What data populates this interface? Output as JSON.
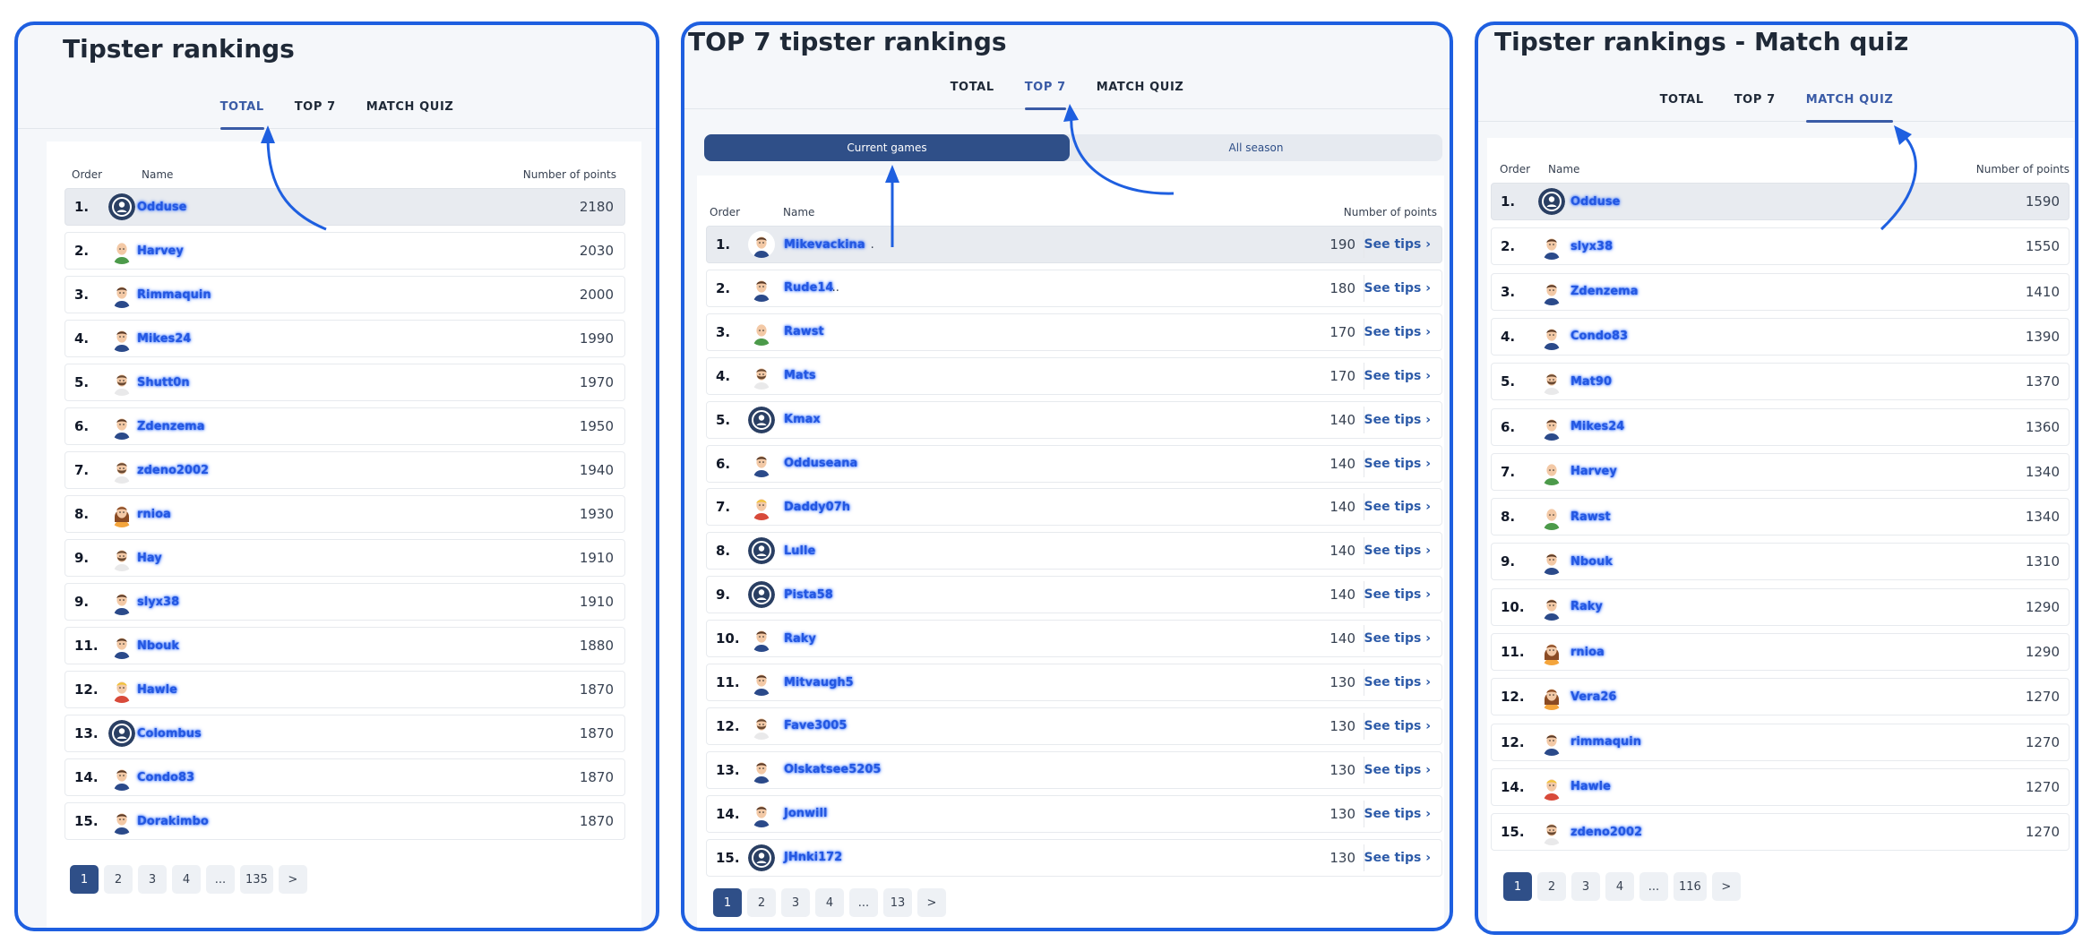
{
  "colors": {
    "accent": "#3a5ba6",
    "panel_border": "#1e5fe0",
    "arrow": "#1e5fe0",
    "pager_active": "#2f4f88"
  },
  "tabs": [
    "TOTAL",
    "TOP 7",
    "MATCH QUIZ"
  ],
  "columns": {
    "order": "Order",
    "name": "Name",
    "points": "Number of points"
  },
  "see_tips": "See tips",
  "panels": [
    {
      "title": "Tipster rankings",
      "active_tab": 0,
      "rows": [
        {
          "rank": "1.",
          "name": "Odduse",
          "points": "2180",
          "avatar": "default"
        },
        {
          "rank": "2.",
          "name": "Harvey",
          "points": "2030",
          "avatar": "bald-green"
        },
        {
          "rank": "3.",
          "name": "Rimmaquin",
          "points": "2000",
          "avatar": "man-blue"
        },
        {
          "rank": "4.",
          "name": "Mikes24",
          "points": "1990",
          "avatar": "man-blue"
        },
        {
          "rank": "5.",
          "name": "Shutt0n",
          "points": "1970",
          "avatar": "bearded"
        },
        {
          "rank": "6.",
          "name": "Zdenzema",
          "points": "1950",
          "avatar": "man-blue"
        },
        {
          "rank": "7.",
          "name": "zdeno2002",
          "points": "1940",
          "avatar": "bearded"
        },
        {
          "rank": "8.",
          "name": "rnioa",
          "points": "1930",
          "avatar": "woman"
        },
        {
          "rank": "9.",
          "name": "Hay",
          "points": "1910",
          "avatar": "bearded"
        },
        {
          "rank": "9.",
          "name": "slyx38",
          "points": "1910",
          "avatar": "man-blue"
        },
        {
          "rank": "11.",
          "name": "Nbouk",
          "points": "1880",
          "avatar": "man-blue"
        },
        {
          "rank": "12.",
          "name": "Hawle",
          "points": "1870",
          "avatar": "blonde-red"
        },
        {
          "rank": "13.",
          "name": "Colombus",
          "points": "1870",
          "avatar": "default"
        },
        {
          "rank": "14.",
          "name": "Condo83",
          "points": "1870",
          "avatar": "man-blue"
        },
        {
          "rank": "15.",
          "name": "Dorakimbo",
          "points": "1870",
          "avatar": "man-blue"
        }
      ],
      "pager": [
        "1",
        "2",
        "3",
        "4",
        "...",
        "135",
        ">"
      ]
    },
    {
      "title": "TOP 7 tipster rankings",
      "active_tab": 1,
      "segments": [
        "Current games",
        "All season"
      ],
      "rows": [
        {
          "rank": "1.",
          "name": "Mikevackina",
          "suffix": ".",
          "points": "190",
          "avatar": "man-blue"
        },
        {
          "rank": "2.",
          "name": "Rude14",
          "suffix": "..",
          "points": "180",
          "avatar": "man-blue"
        },
        {
          "rank": "3.",
          "name": "Rawst",
          "suffix": "",
          "points": "170",
          "avatar": "bald-green"
        },
        {
          "rank": "4.",
          "name": "Mats",
          "suffix": "",
          "points": "170",
          "avatar": "bearded"
        },
        {
          "rank": "5.",
          "name": "Kmax",
          "suffix": "",
          "points": "140",
          "avatar": "default"
        },
        {
          "rank": "6.",
          "name": "Odduseana",
          "suffix": "",
          "points": "140",
          "avatar": "man-blue"
        },
        {
          "rank": "7.",
          "name": "Daddy07h",
          "suffix": "",
          "points": "140",
          "avatar": "blonde-red"
        },
        {
          "rank": "8.",
          "name": "Lulle",
          "suffix": "",
          "points": "140",
          "avatar": "default"
        },
        {
          "rank": "9.",
          "name": "Pista58",
          "suffix": "",
          "points": "140",
          "avatar": "default"
        },
        {
          "rank": "10.",
          "name": "Raky",
          "suffix": "",
          "points": "140",
          "avatar": "man-blue"
        },
        {
          "rank": "11.",
          "name": "Mitvaugh5",
          "suffix": "",
          "points": "130",
          "avatar": "man-blue"
        },
        {
          "rank": "12.",
          "name": "Fave3005",
          "suffix": "",
          "points": "130",
          "avatar": "bearded"
        },
        {
          "rank": "13.",
          "name": "Olskatsee5205",
          "suffix": "",
          "points": "130",
          "avatar": "man-blue"
        },
        {
          "rank": "14.",
          "name": "Jonwill",
          "suffix": "",
          "points": "130",
          "avatar": "man-blue"
        },
        {
          "rank": "15.",
          "name": "JHnki172",
          "suffix": "",
          "points": "130",
          "avatar": "default"
        }
      ],
      "pager": [
        "1",
        "2",
        "3",
        "4",
        "...",
        "13",
        ">"
      ]
    },
    {
      "title": "Tipster rankings - Match quiz",
      "active_tab": 2,
      "rows": [
        {
          "rank": "1.",
          "name": "Odduse",
          "points": "1590",
          "avatar": "default"
        },
        {
          "rank": "2.",
          "name": "slyx38",
          "points": "1550",
          "avatar": "man-blue"
        },
        {
          "rank": "3.",
          "name": "Zdenzema",
          "points": "1410",
          "avatar": "man-blue"
        },
        {
          "rank": "4.",
          "name": "Condo83",
          "points": "1390",
          "avatar": "man-blue"
        },
        {
          "rank": "5.",
          "name": "Mat90",
          "points": "1370",
          "avatar": "bearded"
        },
        {
          "rank": "6.",
          "name": "Mikes24",
          "points": "1360",
          "avatar": "man-blue"
        },
        {
          "rank": "7.",
          "name": "Harvey",
          "points": "1340",
          "avatar": "bald-green"
        },
        {
          "rank": "8.",
          "name": "Rawst",
          "points": "1340",
          "avatar": "bald-green"
        },
        {
          "rank": "9.",
          "name": "Nbouk",
          "points": "1310",
          "avatar": "man-blue"
        },
        {
          "rank": "10.",
          "name": "Raky",
          "points": "1290",
          "avatar": "man-blue"
        },
        {
          "rank": "11.",
          "name": "rnioa",
          "points": "1290",
          "avatar": "woman"
        },
        {
          "rank": "12.",
          "name": "Vera26",
          "points": "1270",
          "avatar": "woman"
        },
        {
          "rank": "12.",
          "name": "rimmaquin",
          "points": "1270",
          "avatar": "man-blue"
        },
        {
          "rank": "14.",
          "name": "Hawle",
          "points": "1270",
          "avatar": "blonde-red"
        },
        {
          "rank": "15.",
          "name": "zdeno2002",
          "points": "1270",
          "avatar": "bearded"
        }
      ],
      "pager": [
        "1",
        "2",
        "3",
        "4",
        "...",
        "116",
        ">"
      ]
    }
  ]
}
